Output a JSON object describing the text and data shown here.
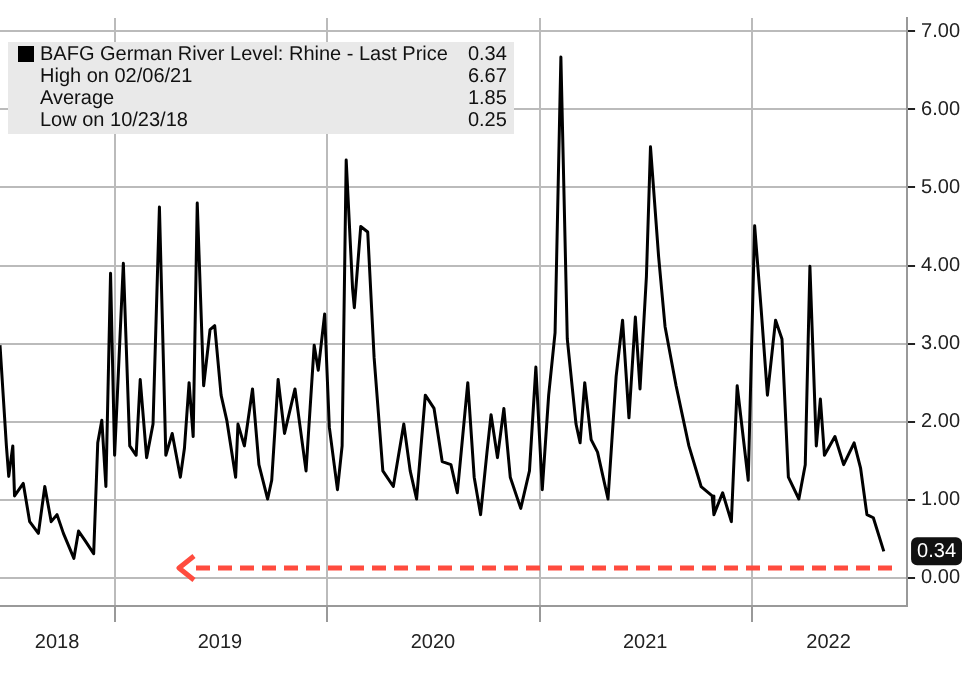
{
  "chart_data": {
    "type": "line",
    "legend": "top left",
    "grid": true,
    "xlim": [
      "2018-06-18",
      "2022-09-24"
    ],
    "xticks": [
      {
        "value": "2018-09-24",
        "label": "2018"
      },
      {
        "value": "2019-01-01",
        "label": null
      },
      {
        "value": "2019-07-01",
        "label": "2019"
      },
      {
        "value": "2020-01-01",
        "label": null
      },
      {
        "value": "2020-07-01",
        "label": "2020"
      },
      {
        "value": "2021-01-01",
        "label": null
      },
      {
        "value": "2021-07-01",
        "label": "2021"
      },
      {
        "value": "2022-01-01",
        "label": null
      },
      {
        "value": "2022-05-12",
        "label": "2022"
      }
    ],
    "ylim": [
      -0.36,
      7.17
    ],
    "yticks": [
      {
        "value": 0,
        "label": "0.00"
      },
      {
        "value": 1,
        "label": "1.00"
      },
      {
        "value": 2,
        "label": "2.00"
      },
      {
        "value": 3,
        "label": "3.00"
      },
      {
        "value": 4,
        "label": "4.00"
      },
      {
        "value": 5,
        "label": "5.00"
      },
      {
        "value": 6,
        "label": "6.00"
      },
      {
        "value": 7,
        "label": "7.00"
      }
    ],
    "annotations": [
      "0.34",
      "High on 02/06/21",
      "6.67",
      "Average",
      "1.85",
      "Low on 10/23/18",
      "0.25",
      {
        "text": "0.34",
        "x": "2022-08-15",
        "y": 0.34
      }
    ],
    "series": [
      {
        "name": "BAFG German River Level: Rhine - Last Price",
        "color": "#000000",
        "x": [
          "2018-06-18",
          "2018-06-29",
          "2018-07-03",
          "2018-07-10",
          "2018-07-13",
          "2018-07-28",
          "2018-08-08",
          "2018-08-23",
          "2018-09-03",
          "2018-09-14",
          "2018-09-24",
          "2018-10-05",
          "2018-10-23",
          "2018-10-31",
          "2018-11-11",
          "2018-11-26",
          "2018-12-03",
          "2018-12-10",
          "2018-12-17",
          "2018-12-25",
          "2019-01-01",
          "2019-01-16",
          "2019-01-27",
          "2019-02-07",
          "2019-02-14",
          "2019-02-25",
          "2019-03-08",
          "2019-03-19",
          "2019-03-30",
          "2019-04-10",
          "2019-04-24",
          "2019-05-01",
          "2019-05-09",
          "2019-05-16",
          "2019-05-23",
          "2019-06-03",
          "2019-06-14",
          "2019-06-22",
          "2019-07-03",
          "2019-07-13",
          "2019-07-28",
          "2019-08-01",
          "2019-08-12",
          "2019-08-26",
          "2019-09-06",
          "2019-09-21",
          "2019-09-28",
          "2019-10-09",
          "2019-10-20",
          "2019-11-07",
          "2019-11-26",
          "2019-12-10",
          "2019-12-17",
          "2019-12-28",
          "2020-01-05",
          "2020-01-19",
          "2020-01-27",
          "2020-02-03",
          "2020-02-14",
          "2020-02-17",
          "2020-02-28",
          "2020-03-11",
          "2020-03-22",
          "2020-04-06",
          "2020-04-24",
          "2020-05-12",
          "2020-05-23",
          "2020-06-03",
          "2020-06-18",
          "2020-07-03",
          "2020-07-17",
          "2020-08-01",
          "2020-08-12",
          "2020-08-30",
          "2020-09-10",
          "2020-09-21",
          "2020-10-02",
          "2020-10-09",
          "2020-10-20",
          "2020-10-31",
          "2020-11-11",
          "2020-11-29",
          "2020-12-14",
          "2020-12-25",
          "2021-01-05",
          "2021-01-16",
          "2021-01-27",
          "2021-02-06",
          "2021-02-17",
          "2021-03-04",
          "2021-03-11",
          "2021-03-19",
          "2021-03-30",
          "2021-04-10",
          "2021-04-28",
          "2021-05-12",
          "2021-05-23",
          "2021-06-03",
          "2021-06-14",
          "2021-06-22",
          "2021-07-03",
          "2021-07-10",
          "2021-07-24",
          "2021-08-04",
          "2021-08-23",
          "2021-09-14",
          "2021-10-05",
          "2021-10-24",
          "2021-10-27",
          "2021-11-11",
          "2021-11-26",
          "2021-12-06",
          "2021-12-25",
          "2022-01-05",
          "2022-01-16",
          "2022-01-27",
          "2022-02-10",
          "2022-02-21",
          "2022-03-04",
          "2022-03-22",
          "2022-04-02",
          "2022-04-10",
          "2022-04-21",
          "2022-04-28",
          "2022-05-05",
          "2022-05-23",
          "2022-06-07",
          "2022-06-25",
          "2022-07-06",
          "2022-07-17",
          "2022-07-28",
          "2022-08-15"
        ],
        "values": [
          2.98,
          1.69,
          1.3,
          1.69,
          1.05,
          1.21,
          0.72,
          0.57,
          1.17,
          0.72,
          0.81,
          0.57,
          0.25,
          0.6,
          0.48,
          0.31,
          1.73,
          2.02,
          1.17,
          3.9,
          1.57,
          4.03,
          1.69,
          1.57,
          2.54,
          1.54,
          1.97,
          4.75,
          1.57,
          1.85,
          1.29,
          1.66,
          2.5,
          1.81,
          4.8,
          2.46,
          3.18,
          3.23,
          2.34,
          2.01,
          1.29,
          1.97,
          1.69,
          2.42,
          1.45,
          1.01,
          1.25,
          2.54,
          1.85,
          2.42,
          1.37,
          2.98,
          2.66,
          3.38,
          1.93,
          1.13,
          1.69,
          5.35,
          3.7,
          3.46,
          4.5,
          4.43,
          2.82,
          1.37,
          1.17,
          1.97,
          1.37,
          1.01,
          2.34,
          2.17,
          1.49,
          1.45,
          1.09,
          2.5,
          1.29,
          0.81,
          1.61,
          2.09,
          1.54,
          2.17,
          1.29,
          0.89,
          1.37,
          2.7,
          1.13,
          2.34,
          3.14,
          6.67,
          3.06,
          1.97,
          1.73,
          2.5,
          1.77,
          1.61,
          1.01,
          2.58,
          3.3,
          2.05,
          3.34,
          2.42,
          3.86,
          5.52,
          4.11,
          3.22,
          2.46,
          1.69,
          1.17,
          1.05,
          0.81,
          1.09,
          0.72,
          2.46,
          1.25,
          4.51,
          3.46,
          2.34,
          3.3,
          3.06,
          1.29,
          1.01,
          1.45,
          3.99,
          1.69,
          2.29,
          1.57,
          1.81,
          1.45,
          1.73,
          1.41,
          0.81,
          0.77,
          0.34
        ]
      }
    ]
  }
}
